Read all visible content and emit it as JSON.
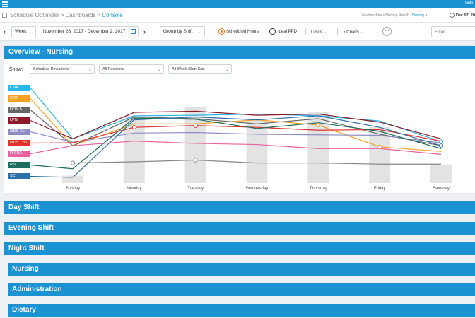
{
  "app": {
    "user_name": "Willi"
  },
  "breadcrumb": {
    "items": [
      "Schedule Optimizer",
      "Dashboards",
      "Console"
    ],
    "separator": ">"
  },
  "facility": {
    "location": "Gladwin Pines Nursing Rehab",
    "unit": "Nursing"
  },
  "header_date": "Dec 07, 20",
  "toolbar": {
    "period": "Week",
    "date_range": "November 26, 2017  -  December 2, 2017",
    "group_by": "Group by Shift",
    "scheduled_hours": "Scheduled Hours",
    "ideal_ppd": "Ideal PPD",
    "limits": "Limits",
    "charts": "Charts",
    "more": "•••",
    "filter_placeholder": "Filter..."
  },
  "overview": {
    "title": "Overview - Nursing",
    "show_label": "Show:",
    "show_options": {
      "metric": "Schedule Deviations",
      "positions": "All Positions",
      "week": "All Week (Sun-Sat)"
    }
  },
  "colors": {
    "accent": "#1b92d1",
    "bar": "#e3e3e3"
  },
  "chart_data": {
    "type": "line",
    "categories": [
      "Sunday",
      "Monday",
      "Tuesday",
      "Wednesday",
      "Thursday",
      "Friday",
      "Saturday"
    ],
    "ylim": [
      0,
      100
    ],
    "grid": false,
    "legend_position": "left",
    "bars": [
      8,
      72,
      82,
      68,
      76,
      60,
      20
    ],
    "series": [
      {
        "name": "CNA",
        "color": "#29b6e8",
        "values": [
          22,
          62,
          63,
          65,
          62,
          53,
          17
        ]
      },
      {
        "name": "DON",
        "color": "#f7a123",
        "values": [
          10,
          48,
          48,
          55,
          46,
          8,
          0
        ]
      },
      {
        "name": "DON A",
        "color": "#666666",
        "values": [
          10,
          60,
          57,
          48,
          57,
          30,
          10
        ]
      },
      {
        "name": "LPN",
        "color": "#8b1a2a",
        "values": [
          22,
          68,
          70,
          63,
          65,
          51,
          22
        ]
      },
      {
        "name": "MDS Col",
        "color": "#8e8cc7",
        "values": [
          16,
          32,
          33,
          30,
          29,
          28,
          15
        ]
      },
      {
        "name": "MDS Coo",
        "color": "#e0312b",
        "values": [
          15,
          42,
          45,
          42,
          37,
          38,
          18
        ]
      },
      {
        "name": "R CNA",
        "color": "#e962a0",
        "values": [
          10,
          18,
          14,
          12,
          5,
          5,
          -5
        ]
      },
      {
        "name": "RN",
        "color": "#1e6e5e",
        "values": [
          -30,
          58,
          56,
          40,
          50,
          35,
          5
        ]
      },
      {
        "name": "SC",
        "color": "#2d6fa8",
        "values": [
          -45,
          55,
          60,
          55,
          62,
          42,
          10
        ]
      },
      {
        "name": "",
        "color": "#888888",
        "values": [
          -20,
          -18,
          -15,
          -20,
          -20,
          -22,
          -22
        ]
      }
    ]
  },
  "sections": [
    {
      "label": "Day Shift"
    },
    {
      "label": "Evening Shift"
    },
    {
      "label": "Night Shift"
    },
    {
      "label": "Nursing"
    },
    {
      "label": "Administration"
    },
    {
      "label": "Dietary"
    }
  ]
}
